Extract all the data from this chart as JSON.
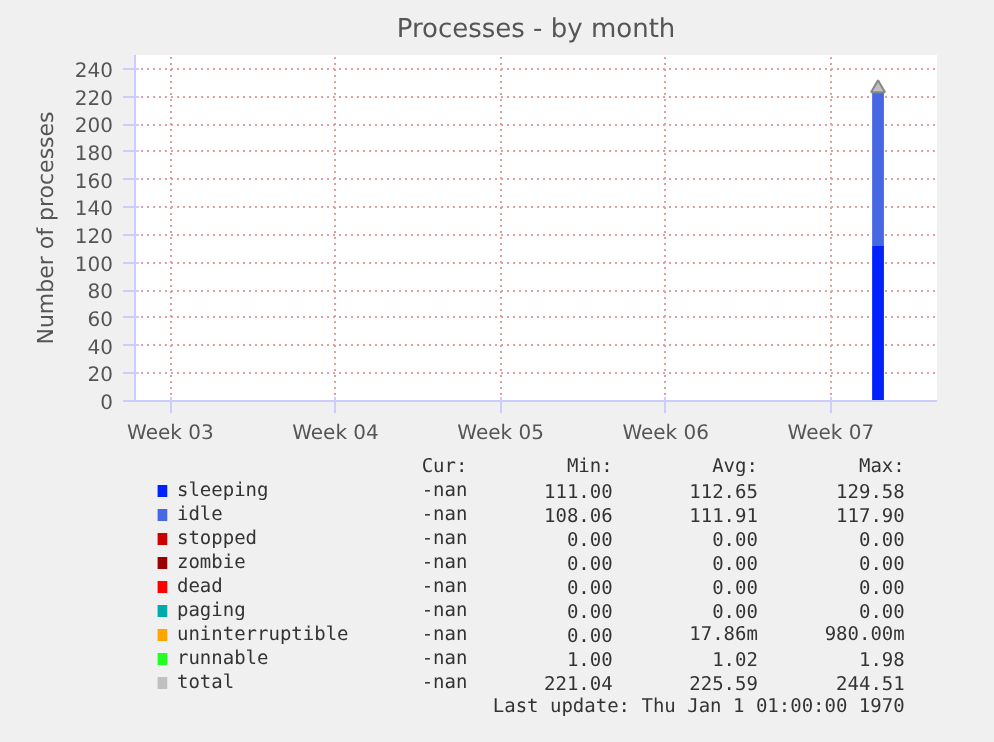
{
  "chart_data": {
    "type": "bar",
    "stacked": true,
    "title": "Processes - by month",
    "ylabel": "Number of processes",
    "categories": [
      null,
      "Week 03",
      null,
      null,
      null,
      null,
      null,
      null,
      "Week 04",
      null,
      null,
      null,
      null,
      null,
      null,
      "Week 05",
      null,
      null,
      null,
      null,
      null,
      null,
      "Week 06",
      null,
      null,
      null,
      null,
      null,
      null,
      "Week 07",
      null,
      null,
      null,
      null
    ],
    "ylim": [
      0,
      250
    ],
    "yticks": [
      0,
      20,
      40,
      60,
      80,
      100,
      120,
      140,
      160,
      180,
      200,
      220,
      240
    ],
    "grid": true,
    "legend": "bottom",
    "series": [
      {
        "name": "sleeping",
        "color": "#0022ff",
        "values": [
          null,
          null,
          null,
          null,
          null,
          null,
          null,
          null,
          null,
          null,
          null,
          null,
          null,
          null,
          null,
          null,
          null,
          null,
          null,
          null,
          null,
          null,
          null,
          null,
          null,
          null,
          null,
          null,
          null,
          null,
          null,
          112,
          null,
          null
        ]
      },
      {
        "name": "idle",
        "color": "#4668e4",
        "values": [
          null,
          null,
          null,
          null,
          null,
          null,
          null,
          null,
          null,
          null,
          null,
          null,
          null,
          null,
          null,
          null,
          null,
          null,
          null,
          null,
          null,
          null,
          null,
          null,
          null,
          null,
          null,
          null,
          null,
          null,
          null,
          112,
          null,
          null
        ]
      },
      {
        "name": "stopped",
        "color": "#cc0000",
        "values": [
          null,
          null,
          null,
          null,
          null,
          null,
          null,
          null,
          null,
          null,
          null,
          null,
          null,
          null,
          null,
          null,
          null,
          null,
          null,
          null,
          null,
          null,
          null,
          null,
          null,
          null,
          null,
          null,
          null,
          null,
          null,
          0,
          null,
          null
        ]
      },
      {
        "name": "zombie",
        "color": "#990000",
        "values": [
          null,
          null,
          null,
          null,
          null,
          null,
          null,
          null,
          null,
          null,
          null,
          null,
          null,
          null,
          null,
          null,
          null,
          null,
          null,
          null,
          null,
          null,
          null,
          null,
          null,
          null,
          null,
          null,
          null,
          null,
          null,
          0,
          null,
          null
        ]
      },
      {
        "name": "dead",
        "color": "#ff0000",
        "values": [
          null,
          null,
          null,
          null,
          null,
          null,
          null,
          null,
          null,
          null,
          null,
          null,
          null,
          null,
          null,
          null,
          null,
          null,
          null,
          null,
          null,
          null,
          null,
          null,
          null,
          null,
          null,
          null,
          null,
          null,
          null,
          0,
          null,
          null
        ]
      },
      {
        "name": "paging",
        "color": "#00aaaa",
        "values": [
          null,
          null,
          null,
          null,
          null,
          null,
          null,
          null,
          null,
          null,
          null,
          null,
          null,
          null,
          null,
          null,
          null,
          null,
          null,
          null,
          null,
          null,
          null,
          null,
          null,
          null,
          null,
          null,
          null,
          null,
          null,
          0,
          null,
          null
        ]
      },
      {
        "name": "uninterruptible",
        "color": "#ffa500",
        "values": [
          null,
          null,
          null,
          null,
          null,
          null,
          null,
          null,
          null,
          null,
          null,
          null,
          null,
          null,
          null,
          null,
          null,
          null,
          null,
          null,
          null,
          null,
          null,
          null,
          null,
          null,
          null,
          null,
          null,
          null,
          null,
          0,
          null,
          null
        ]
      },
      {
        "name": "runnable",
        "color": "#22ff22",
        "values": [
          null,
          null,
          null,
          null,
          null,
          null,
          null,
          null,
          null,
          null,
          null,
          null,
          null,
          null,
          null,
          null,
          null,
          null,
          null,
          null,
          null,
          null,
          null,
          null,
          null,
          null,
          null,
          null,
          null,
          null,
          null,
          null,
          null,
          null
        ]
      },
      {
        "name": "total",
        "color": "#c0c0c0",
        "type": "scatter",
        "marker": "triangle",
        "values": [
          null,
          null,
          null,
          null,
          null,
          null,
          null,
          null,
          null,
          null,
          null,
          null,
          null,
          null,
          null,
          null,
          null,
          null,
          null,
          null,
          null,
          null,
          null,
          null,
          null,
          null,
          null,
          null,
          null,
          null,
          null,
          226,
          null,
          null
        ]
      }
    ],
    "annotations": [
      "Cur:          Min:          Avg:          Max:",
      "-nan        111.00        112.65        129.58",
      "-nan        108.06        111.91        117.90",
      "-nan          0.00          0.00          0.00",
      "-nan          0.00          0.00          0.00",
      "-nan          0.00          0.00          0.00",
      "-nan          0.00          0.00          0.00",
      "-nan          0.00         17.86m      980.00m",
      "-nan          1.00          1.02          1.98",
      "-nan        221.04        225.59        244.51",
      "Last update: Thu Jan  1 01:00:00 1970"
    ]
  }
}
